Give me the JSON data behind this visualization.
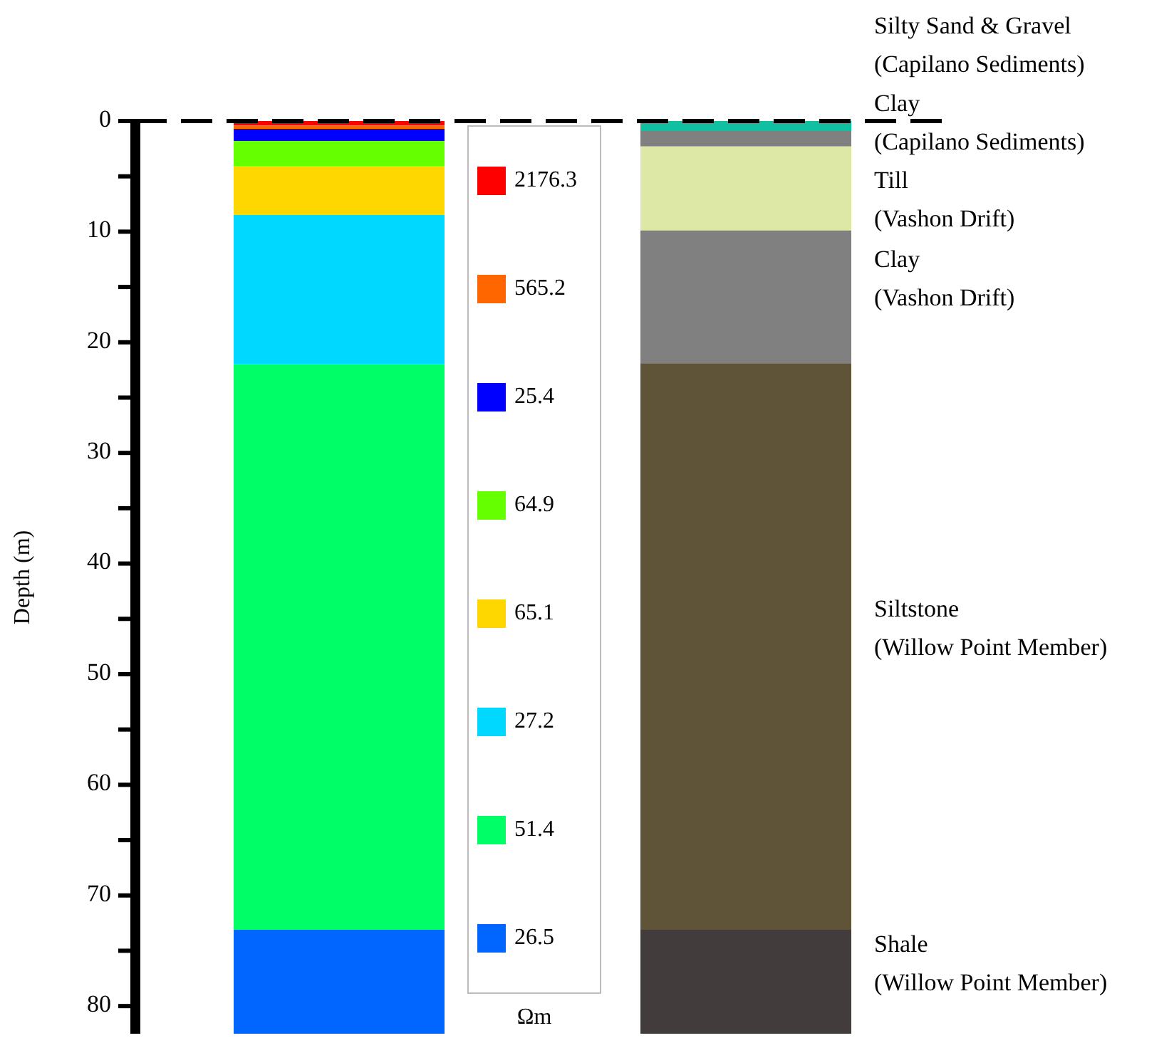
{
  "chart_data": {
    "type": "bar",
    "stacked": true,
    "ylabel": "Depth (m)",
    "legend_title": "Ωm",
    "legend": "right",
    "categories": [
      null,
      null
    ],
    "ylim": [
      82.5,
      0
    ],
    "yticks": [
      0,
      {
        "value": 5,
        "label": null
      },
      10,
      {
        "value": 15,
        "label": null
      },
      20,
      {
        "value": 25,
        "label": null
      },
      30,
      {
        "value": 35,
        "label": null
      },
      40,
      {
        "value": 45,
        "label": null
      },
      50,
      {
        "value": 55,
        "label": null
      },
      60,
      {
        "value": 65,
        "label": null
      },
      70,
      {
        "value": 75,
        "label": null
      },
      80
    ],
    "ref_lines": [
      {
        "axis": "y",
        "value": 0,
        "label": null,
        "color": "#000000",
        "line_style": "dashed"
      }
    ],
    "series": [
      {
        "name": "2176.3",
        "color": "#ff0000",
        "values": [
          0.4,
          null
        ]
      },
      {
        "name": "565.2",
        "color": "#ff6600",
        "values": [
          0.3,
          null
        ]
      },
      {
        "name": "25.4",
        "color": "#0000ff",
        "values": [
          1.1,
          null
        ]
      },
      {
        "name": "64.9",
        "color": "#66ff00",
        "values": [
          2.3,
          null
        ]
      },
      {
        "name": "65.1",
        "color": "#ffd700",
        "values": [
          4.4,
          null
        ]
      },
      {
        "name": "27.2",
        "color": "#00d8ff",
        "values": [
          13.5,
          null
        ]
      },
      {
        "name": "51.4",
        "color": "#00ff66",
        "values": [
          51.1,
          null
        ]
      },
      {
        "name": "26.5",
        "color": "#0066ff",
        "values": [
          9.4,
          null
        ]
      },
      {
        "name": "Silty Sand & Gravel\n(Capilano Sediments)",
        "color": "#10c0a0",
        "values": [
          null,
          0.9
        ]
      },
      {
        "name": "Clay\n(Capilano Sediments)",
        "color": "#808080",
        "values": [
          null,
          1.4
        ]
      },
      {
        "name": "Till\n(Vashon Drift)",
        "color": "#dde8a6",
        "values": [
          null,
          7.6
        ]
      },
      {
        "name": "Clay\n(Vashon Drift)",
        "color": "#808080",
        "values": [
          null,
          12.0
        ]
      },
      {
        "name": "Siltstone\n(Willow Point Member)",
        "color": "#605438",
        "values": [
          null,
          51.2
        ]
      },
      {
        "name": "Shale\n(Willow Point Member)",
        "color": "#433c3c",
        "values": [
          null,
          9.4
        ]
      }
    ]
  }
}
